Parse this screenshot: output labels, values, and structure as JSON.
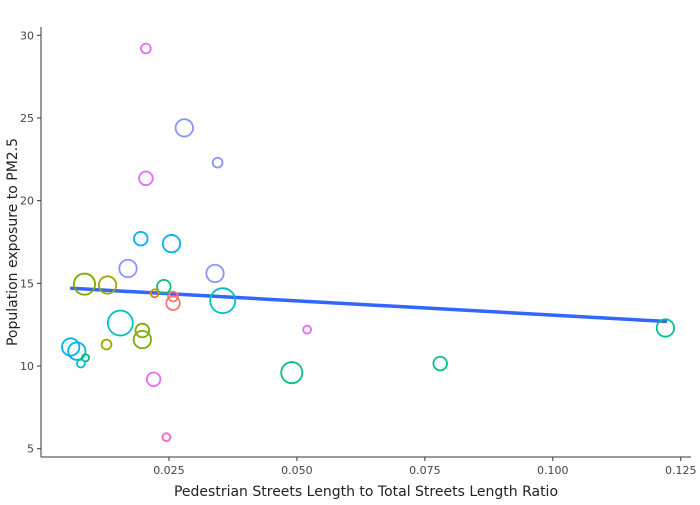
{
  "chart_data": {
    "type": "scatter",
    "title": "",
    "xlabel": "Pedestrian Streets Length to Total Streets Length Ratio",
    "ylabel": "Population exposure to PM2.5",
    "xlim": [
      0.0,
      0.127
    ],
    "ylim": [
      4.5,
      30.5
    ],
    "x_ticks": [
      0.025,
      0.05,
      0.075,
      0.1,
      0.125
    ],
    "x_tick_labels": [
      "0.025",
      "0.050",
      "0.075",
      "0.100",
      "0.125"
    ],
    "y_ticks": [
      5,
      10,
      15,
      20,
      25,
      30
    ],
    "y_tick_labels": [
      "5",
      "10",
      "15",
      "20",
      "25",
      "30"
    ],
    "grid": false,
    "legend": "none",
    "points": [
      {
        "x": 0.0205,
        "y": 29.2,
        "size": 1,
        "color": "#e76bf3"
      },
      {
        "x": 0.028,
        "y": 24.4,
        "size": 3,
        "color": "#8b93ff"
      },
      {
        "x": 0.0345,
        "y": 22.3,
        "size": 1,
        "color": "#8b93ff"
      },
      {
        "x": 0.0205,
        "y": 21.35,
        "size": 2,
        "color": "#e76bf3"
      },
      {
        "x": 0.0195,
        "y": 17.7,
        "size": 2,
        "color": "#00b0f6"
      },
      {
        "x": 0.0255,
        "y": 17.4,
        "size": 3,
        "color": "#00b0f6"
      },
      {
        "x": 0.017,
        "y": 15.9,
        "size": 3,
        "color": "#8b93ff"
      },
      {
        "x": 0.034,
        "y": 15.6,
        "size": 3,
        "color": "#8b93ff"
      },
      {
        "x": 0.0085,
        "y": 14.95,
        "size": 4,
        "color": "#7caa00"
      },
      {
        "x": 0.013,
        "y": 14.9,
        "size": 3,
        "color": "#a3a500"
      },
      {
        "x": 0.024,
        "y": 14.8,
        "size": 2,
        "color": "#00bf7d"
      },
      {
        "x": 0.0222,
        "y": 14.4,
        "size": 0.5,
        "color": "#d89000"
      },
      {
        "x": 0.0258,
        "y": 14.2,
        "size": 1,
        "color": "#f8766d"
      },
      {
        "x": 0.0258,
        "y": 13.8,
        "size": 2,
        "color": "#f8766d"
      },
      {
        "x": 0.0355,
        "y": 13.95,
        "size": 5,
        "color": "#00bfc4"
      },
      {
        "x": 0.0155,
        "y": 12.6,
        "size": 5,
        "color": "#00bfc4"
      },
      {
        "x": 0.052,
        "y": 12.2,
        "size": 0.5,
        "color": "#e76bf3"
      },
      {
        "x": 0.0198,
        "y": 12.15,
        "size": 2,
        "color": "#7caa00"
      },
      {
        "x": 0.0198,
        "y": 11.6,
        "size": 3,
        "color": "#7caa00"
      },
      {
        "x": 0.0128,
        "y": 11.3,
        "size": 1,
        "color": "#a3a500"
      },
      {
        "x": 0.0058,
        "y": 11.15,
        "size": 3,
        "color": "#00b0f6"
      },
      {
        "x": 0.007,
        "y": 10.9,
        "size": 3,
        "color": "#00b0f6"
      },
      {
        "x": 0.0087,
        "y": 10.5,
        "size": 0.3,
        "color": "#00be67"
      },
      {
        "x": 0.0078,
        "y": 10.15,
        "size": 0.5,
        "color": "#00bfc4"
      },
      {
        "x": 0.078,
        "y": 10.15,
        "size": 2,
        "color": "#00c08b"
      },
      {
        "x": 0.049,
        "y": 9.6,
        "size": 4,
        "color": "#00c08b"
      },
      {
        "x": 0.022,
        "y": 9.2,
        "size": 2,
        "color": "#e76bf3"
      },
      {
        "x": 0.0245,
        "y": 5.7,
        "size": 0.5,
        "color": "#ff62bc"
      },
      {
        "x": 0.122,
        "y": 12.3,
        "size": 3,
        "color": "#00c08b"
      }
    ],
    "trend_line": {
      "x": [
        0.006,
        0.122
      ],
      "y": [
        14.7,
        12.7
      ],
      "color": "#3366ff"
    }
  }
}
